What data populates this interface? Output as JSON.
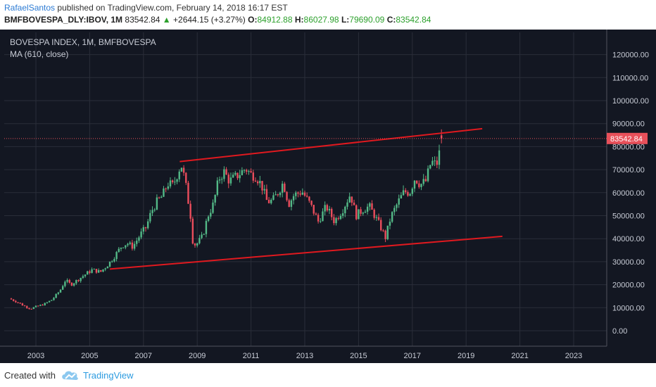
{
  "header": {
    "author": "RafaelSantos",
    "published_text": "published on TradingView.com, February 14, 2018 16:17 EST",
    "symbol": "BMFBOVESPA_DLY:IBOV, 1M",
    "last": "83542.84",
    "change": "+2644.15 (+3.27%)",
    "open_label": "O:",
    "open": "84912.88",
    "high_label": "H:",
    "high": "86027.98",
    "low_label": "L:",
    "low": "79690.09",
    "close_label": "C:",
    "close": "83542.84"
  },
  "legend": {
    "title": "BOVESPA INDEX, 1M, BMFBOVESPA",
    "indicator": "MA (610, close)"
  },
  "footer": {
    "created_with": "Created with",
    "brand": "TradingView",
    "logo_icon": "tradingview-cloud-icon"
  },
  "colors": {
    "background": "#131722",
    "grid": "#2a2e39",
    "up": "#53b987",
    "down": "#eb4d5c",
    "trendline": "#e0191f",
    "last_price_bg": "#e8505a"
  },
  "chart_data": {
    "type": "candlestick",
    "x_axis": {
      "ticks": [
        "2003",
        "2005",
        "2007",
        "2009",
        "2011",
        "2013",
        "2015",
        "2017",
        "2019",
        "2021",
        "2023"
      ]
    },
    "y_axis": {
      "ticks": [
        "0.00",
        "10000.00",
        "20000.00",
        "30000.00",
        "40000.00",
        "50000.00",
        "60000.00",
        "70000.00",
        "80000.00",
        "90000.00",
        "100000.00",
        "110000.00",
        "120000.00"
      ],
      "range": [
        -8000,
        126000
      ]
    },
    "last_price_label": "83542.84",
    "last_price": 83542.84,
    "close_series": [
      [
        2002.0,
        14000
      ],
      [
        2002.3,
        12500
      ],
      [
        2002.6,
        10500
      ],
      [
        2002.8,
        9500
      ],
      [
        2003.0,
        10500
      ],
      [
        2003.3,
        11500
      ],
      [
        2003.6,
        13500
      ],
      [
        2003.9,
        17500
      ],
      [
        2004.1,
        22000
      ],
      [
        2004.3,
        20000
      ],
      [
        2004.6,
        22500
      ],
      [
        2004.9,
        25000
      ],
      [
        2005.1,
        26500
      ],
      [
        2005.4,
        25500
      ],
      [
        2005.7,
        29000
      ],
      [
        2005.9,
        32000
      ],
      [
        2006.2,
        37000
      ],
      [
        2006.4,
        38000
      ],
      [
        2006.6,
        36500
      ],
      [
        2006.9,
        42000
      ],
      [
        2007.1,
        45000
      ],
      [
        2007.3,
        52000
      ],
      [
        2007.5,
        56000
      ],
      [
        2007.7,
        58500
      ],
      [
        2007.9,
        64000
      ],
      [
        2008.1,
        63000
      ],
      [
        2008.4,
        72500
      ],
      [
        2008.55,
        65000
      ],
      [
        2008.75,
        50000
      ],
      [
        2008.85,
        37000
      ],
      [
        2009.0,
        38000
      ],
      [
        2009.2,
        41000
      ],
      [
        2009.4,
        50000
      ],
      [
        2009.6,
        55000
      ],
      [
        2009.8,
        66000
      ],
      [
        2010.0,
        69000
      ],
      [
        2010.2,
        65000
      ],
      [
        2010.5,
        67500
      ],
      [
        2010.8,
        70500
      ],
      [
        2011.0,
        68000
      ],
      [
        2011.2,
        67000
      ],
      [
        2011.4,
        63000
      ],
      [
        2011.6,
        56000
      ],
      [
        2011.8,
        56500
      ],
      [
        2012.0,
        60000
      ],
      [
        2012.2,
        64500
      ],
      [
        2012.4,
        55000
      ],
      [
        2012.6,
        59000
      ],
      [
        2012.9,
        60500
      ],
      [
        2013.2,
        55000
      ],
      [
        2013.5,
        47500
      ],
      [
        2013.8,
        54000
      ],
      [
        2014.1,
        47500
      ],
      [
        2014.4,
        52500
      ],
      [
        2014.7,
        59500
      ],
      [
        2014.9,
        50000
      ],
      [
        2015.2,
        53000
      ],
      [
        2015.4,
        54000
      ],
      [
        2015.6,
        50000
      ],
      [
        2015.8,
        45500
      ],
      [
        2016.0,
        40500
      ],
      [
        2016.2,
        49500
      ],
      [
        2016.5,
        56500
      ],
      [
        2016.7,
        60500
      ],
      [
        2016.9,
        60000
      ],
      [
        2017.1,
        66500
      ],
      [
        2017.3,
        63500
      ],
      [
        2017.5,
        65000
      ],
      [
        2017.7,
        73500
      ],
      [
        2017.9,
        72000
      ],
      [
        2018.0,
        77000
      ],
      [
        2018.1,
        83542.84
      ]
    ],
    "series": [
      {
        "name": "BOVESPA INDEX",
        "type": "candlestick"
      }
    ],
    "trendlines": [
      {
        "from": [
          2008.35,
          73500
        ],
        "to": [
          2019.6,
          87800
        ]
      },
      {
        "from": [
          2005.75,
          26800
        ],
        "to": [
          2020.35,
          41000
        ]
      }
    ],
    "grid": true
  }
}
